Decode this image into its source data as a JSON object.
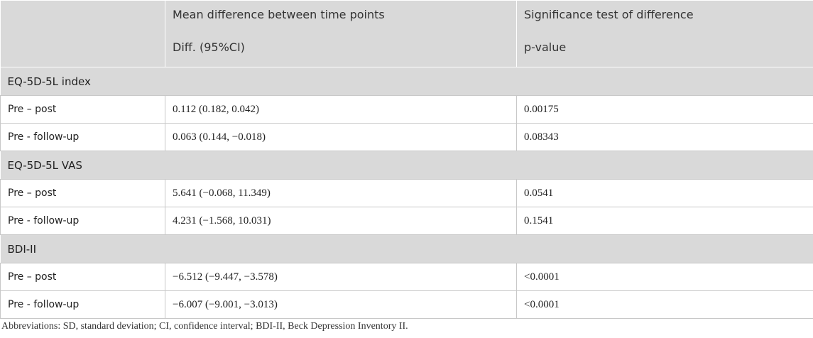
{
  "header": {
    "row1": [
      "Mean difference between time points",
      "Significance test of difference"
    ],
    "row2": [
      "Diff. (95%CI)",
      "p-value"
    ]
  },
  "sections": [
    {
      "title": "EQ-5D-5L index",
      "rows": [
        [
          "Pre – post",
          "0.112 (0.182, 0.042)",
          "0.00175"
        ],
        [
          "Pre - follow-up",
          "0.063 (0.144, −0.018)",
          "0.08343"
        ]
      ]
    },
    {
      "title": "EQ-5D-5L VAS",
      "rows": [
        [
          "Pre – post",
          "5.641 (−0.068, 11.349)",
          "0.0541"
        ],
        [
          "Pre - follow-up",
          "4.231 (−1.568, 10.031)",
          "0.1541"
        ]
      ]
    },
    {
      "title": "BDI-II",
      "rows": [
        [
          "Pre – post",
          "−6.512 (−9.447, −3.578)",
          "<0.0001"
        ],
        [
          "Pre - follow-up",
          "−6.007 (−9.001, −3.013)",
          "<0.0001"
        ]
      ]
    }
  ],
  "footnote": "Abbreviations: SD, standard deviation; CI, confidence interval; BDI-II, Beck Depression Inventory II."
}
